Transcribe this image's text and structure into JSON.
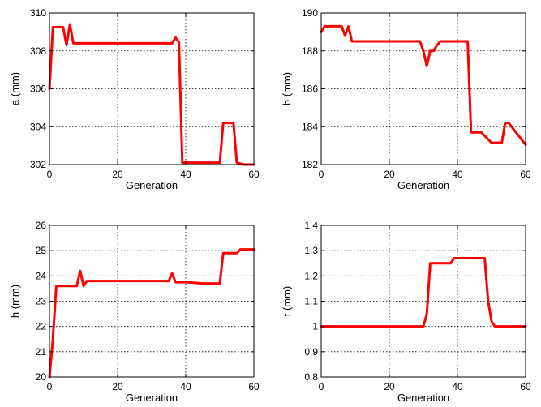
{
  "chart_data": [
    {
      "type": "line",
      "xlabel": "Generation",
      "ylabel": "a (mm)",
      "xlim": [
        0,
        60
      ],
      "ylim": [
        302,
        310
      ],
      "xticks": [
        "0",
        "20",
        "40",
        "60"
      ],
      "yticks": [
        "302",
        "304",
        "306",
        "308",
        "310"
      ],
      "grid": true,
      "color": "#ff0000",
      "series": [
        {
          "x": [
            0,
            1,
            2,
            4,
            5,
            6,
            7,
            8,
            10,
            20,
            30,
            36,
            37,
            38,
            39,
            40,
            45,
            50,
            51,
            52,
            53,
            54,
            55,
            57,
            60
          ],
          "y": [
            306,
            309.25,
            309.25,
            309.25,
            308.3,
            309.4,
            308.4,
            308.4,
            308.4,
            308.4,
            308.4,
            308.4,
            308.7,
            308.45,
            302.1,
            302.1,
            302.1,
            302.1,
            304.2,
            304.2,
            304.2,
            304.2,
            302.1,
            302.0,
            302.0
          ]
        }
      ]
    },
    {
      "type": "line",
      "xlabel": "Generation",
      "ylabel": "b (mm)",
      "xlim": [
        0,
        60
      ],
      "ylim": [
        182,
        190
      ],
      "xticks": [
        "0",
        "20",
        "40",
        "60"
      ],
      "yticks": [
        "182",
        "184",
        "186",
        "188",
        "190"
      ],
      "grid": true,
      "color": "#ff0000",
      "series": [
        {
          "x": [
            0,
            1,
            2,
            5,
            6,
            7,
            8,
            9,
            10,
            20,
            29,
            30,
            31,
            32,
            33,
            34,
            35,
            40,
            42,
            43,
            44,
            46,
            47,
            50,
            52,
            53,
            54,
            55,
            60
          ],
          "y": [
            189,
            189.3,
            189.3,
            189.3,
            189.3,
            188.8,
            189.3,
            188.5,
            188.5,
            188.5,
            188.5,
            188,
            187.2,
            188,
            188,
            188.3,
            188.5,
            188.5,
            188.5,
            188.5,
            183.7,
            183.7,
            183.7,
            183.15,
            183.15,
            183.15,
            184.2,
            184.2,
            183.05
          ]
        }
      ]
    },
    {
      "type": "line",
      "xlabel": "Generation",
      "ylabel": "h (mm)",
      "xlim": [
        0,
        60
      ],
      "ylim": [
        20,
        26
      ],
      "xticks": [
        "0",
        "20",
        "40",
        "60"
      ],
      "yticks": [
        "20",
        "21",
        "22",
        "23",
        "24",
        "25",
        "26"
      ],
      "grid": true,
      "color": "#ff0000",
      "series": [
        {
          "x": [
            0,
            1,
            2,
            4,
            5,
            7,
            8,
            9,
            10,
            11,
            20,
            30,
            35,
            36,
            37,
            38,
            40,
            45,
            50,
            51,
            52,
            55,
            56,
            59,
            60
          ],
          "y": [
            20,
            21.5,
            23.6,
            23.6,
            23.6,
            23.6,
            23.6,
            24.2,
            23.6,
            23.8,
            23.8,
            23.8,
            23.8,
            24.1,
            23.75,
            23.75,
            23.75,
            23.7,
            23.7,
            24.9,
            24.9,
            24.9,
            25.05,
            25.05,
            25.05
          ]
        }
      ]
    },
    {
      "type": "line",
      "xlabel": "Generation",
      "ylabel": "t (mm)",
      "xlim": [
        0,
        60
      ],
      "ylim": [
        0.8,
        1.4
      ],
      "xticks": [
        "0",
        "20",
        "40",
        "60"
      ],
      "yticks": [
        "0.8",
        "0.9",
        "1",
        "1.1",
        "1.2",
        "1.3",
        "1.4"
      ],
      "grid": true,
      "color": "#ff0000",
      "series": [
        {
          "x": [
            0,
            10,
            20,
            30,
            31,
            32,
            34,
            36,
            37,
            38,
            39,
            40,
            45,
            47,
            48,
            49,
            50,
            51,
            55,
            60
          ],
          "y": [
            1,
            1,
            1,
            1,
            1.05,
            1.25,
            1.25,
            1.25,
            1.25,
            1.25,
            1.27,
            1.27,
            1.27,
            1.27,
            1.27,
            1.1,
            1.02,
            1,
            1,
            1
          ]
        }
      ]
    }
  ]
}
